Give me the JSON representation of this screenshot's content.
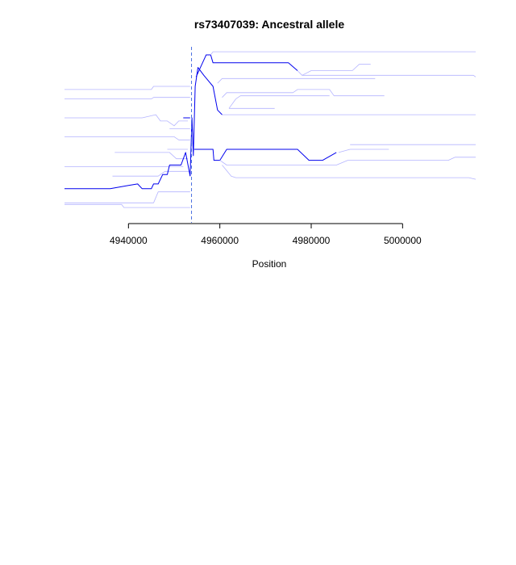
{
  "chart_data": {
    "type": "line",
    "title": "rs73407039: Ancestral allele",
    "xlabel": "Position",
    "ylabel": "",
    "xlim": [
      4926000,
      5016000
    ],
    "ylim": [
      0,
      1
    ],
    "x_ticks": [
      4940000,
      4960000,
      4980000,
      5000000
    ],
    "tick_labels": [
      "4940000",
      "4960000",
      "4980000",
      "5000000"
    ],
    "grid": false,
    "legend": "none",
    "marker_position": 4953800,
    "colors": {
      "strong": "#0000ee",
      "faint": "#b4b4ff",
      "marker": "#4a6fe0"
    },
    "series": [
      {
        "intensity": "faint",
        "points": [
          [
            4926000,
            0.78
          ],
          [
            4945000,
            0.78
          ],
          [
            4945500,
            0.8
          ],
          [
            4953500,
            0.8
          ]
        ]
      },
      {
        "intensity": "faint",
        "points": [
          [
            4926000,
            0.72
          ],
          [
            4945000,
            0.72
          ],
          [
            4945500,
            0.73
          ],
          [
            4953500,
            0.73
          ]
        ]
      },
      {
        "intensity": "faint",
        "points": [
          [
            4926000,
            0.6
          ],
          [
            4943000,
            0.6
          ],
          [
            4946000,
            0.62
          ],
          [
            4947000,
            0.58
          ],
          [
            4948500,
            0.58
          ],
          [
            4950000,
            0.55
          ],
          [
            4951000,
            0.58
          ],
          [
            4953000,
            0.58
          ]
        ]
      },
      {
        "intensity": "faint",
        "points": [
          [
            4949000,
            0.53
          ],
          [
            4953500,
            0.53
          ]
        ]
      },
      {
        "intensity": "faint",
        "points": [
          [
            4926000,
            0.48
          ],
          [
            4950000,
            0.48
          ],
          [
            4951000,
            0.46
          ],
          [
            4953500,
            0.46
          ]
        ]
      },
      {
        "intensity": "faint",
        "points": [
          [
            4948500,
            0.4
          ],
          [
            4953000,
            0.4
          ]
        ]
      },
      {
        "intensity": "faint",
        "points": [
          [
            4937000,
            0.38
          ],
          [
            4949000,
            0.38
          ],
          [
            4950500,
            0.34
          ],
          [
            4953000,
            0.34
          ]
        ]
      },
      {
        "intensity": "faint",
        "points": [
          [
            4926000,
            0.29
          ],
          [
            4952000,
            0.29
          ]
        ]
      },
      {
        "intensity": "faint",
        "points": [
          [
            4936500,
            0.23
          ],
          [
            4946500,
            0.23
          ],
          [
            4948000,
            0.26
          ],
          [
            4953500,
            0.26
          ]
        ]
      },
      {
        "intensity": "faint",
        "points": [
          [
            4926000,
            0.06
          ],
          [
            4945500,
            0.06
          ],
          [
            4946500,
            0.13
          ],
          [
            4953500,
            0.13
          ]
        ]
      },
      {
        "intensity": "faint",
        "points": [
          [
            4926000,
            0.05
          ],
          [
            4938500,
            0.05
          ],
          [
            4939000,
            0.03
          ],
          [
            4953500,
            0.03
          ]
        ]
      },
      {
        "intensity": "strong",
        "points": [
          [
            4926000,
            0.15
          ],
          [
            4936000,
            0.15
          ],
          [
            4940000,
            0.17
          ],
          [
            4942000,
            0.18
          ],
          [
            4943000,
            0.15
          ],
          [
            4945000,
            0.15
          ],
          [
            4945500,
            0.18
          ],
          [
            4946500,
            0.18
          ],
          [
            4947500,
            0.24
          ],
          [
            4948500,
            0.24
          ],
          [
            4949000,
            0.3
          ],
          [
            4951500,
            0.3
          ],
          [
            4952500,
            0.38
          ],
          [
            4953500,
            0.23
          ]
        ]
      },
      {
        "intensity": "strong",
        "points": [
          [
            4952000,
            0.6
          ],
          [
            4953500,
            0.6
          ]
        ]
      },
      {
        "intensity": "strong",
        "points": [
          [
            4953500,
            0.23
          ],
          [
            4953900,
            0.6
          ],
          [
            4954200,
            0.36
          ],
          [
            4954600,
            0.8
          ],
          [
            4955200,
            0.92
          ],
          [
            4956500,
            0.87
          ],
          [
            4958500,
            0.8
          ],
          [
            4959500,
            0.65
          ],
          [
            4960500,
            0.62
          ]
        ]
      },
      {
        "intensity": "strong",
        "points": [
          [
            4954400,
            0.4
          ],
          [
            4958500,
            0.4
          ],
          [
            4958700,
            0.33
          ],
          [
            4960000,
            0.33
          ],
          [
            4961500,
            0.4
          ],
          [
            4977000,
            0.4
          ],
          [
            4979500,
            0.33
          ],
          [
            4982500,
            0.33
          ],
          [
            4985500,
            0.38
          ]
        ]
      },
      {
        "intensity": "strong",
        "points": [
          [
            4954800,
            0.86
          ],
          [
            4957000,
            1.0
          ],
          [
            4958000,
            1.0
          ],
          [
            4958500,
            0.95
          ],
          [
            4975000,
            0.95
          ],
          [
            4977000,
            0.9
          ]
        ]
      },
      {
        "intensity": "faint",
        "points": [
          [
            4958000,
            1.0
          ],
          [
            4958500,
            1.02
          ],
          [
            5016000,
            1.02
          ]
        ]
      },
      {
        "intensity": "faint",
        "points": [
          [
            4977000,
            0.9
          ],
          [
            4978000,
            0.87
          ],
          [
            4980000,
            0.9
          ],
          [
            4989000,
            0.9
          ],
          [
            4990500,
            0.94
          ],
          [
            4993000,
            0.94
          ]
        ]
      },
      {
        "intensity": "faint",
        "points": [
          [
            4978000,
            0.87
          ],
          [
            5015500,
            0.87
          ],
          [
            5016000,
            0.86
          ]
        ]
      },
      {
        "intensity": "faint",
        "points": [
          [
            4959500,
            0.82
          ],
          [
            4960500,
            0.85
          ],
          [
            4994000,
            0.85
          ]
        ]
      },
      {
        "intensity": "faint",
        "points": [
          [
            4960500,
            0.73
          ],
          [
            4961500,
            0.76
          ],
          [
            4976000,
            0.76
          ],
          [
            4977000,
            0.78
          ],
          [
            4984000,
            0.78
          ],
          [
            4985000,
            0.74
          ],
          [
            4996000,
            0.74
          ]
        ]
      },
      {
        "intensity": "faint",
        "points": [
          [
            4963500,
            0.72
          ],
          [
            4964500,
            0.74
          ],
          [
            4984000,
            0.74
          ]
        ]
      },
      {
        "intensity": "faint",
        "points": [
          [
            4962000,
            0.66
          ],
          [
            4963500,
            0.72
          ]
        ]
      },
      {
        "intensity": "faint",
        "points": [
          [
            4962000,
            0.66
          ],
          [
            4972000,
            0.66
          ]
        ]
      },
      {
        "intensity": "faint",
        "points": [
          [
            4960500,
            0.62
          ],
          [
            5016000,
            0.62
          ]
        ]
      },
      {
        "intensity": "faint",
        "points": [
          [
            4986000,
            0.38
          ],
          [
            4988500,
            0.4
          ],
          [
            4997000,
            0.4
          ]
        ]
      },
      {
        "intensity": "faint",
        "points": [
          [
            4988500,
            0.43
          ],
          [
            5016000,
            0.43
          ]
        ]
      },
      {
        "intensity": "faint",
        "points": [
          [
            4960000,
            0.33
          ],
          [
            4961500,
            0.3
          ],
          [
            4985500,
            0.3
          ],
          [
            4988000,
            0.33
          ],
          [
            5010000,
            0.33
          ],
          [
            5011500,
            0.35
          ],
          [
            5016000,
            0.35
          ]
        ]
      },
      {
        "intensity": "faint",
        "points": [
          [
            4960500,
            0.3
          ],
          [
            4962500,
            0.23
          ],
          [
            4963500,
            0.22
          ],
          [
            5014500,
            0.22
          ],
          [
            5016000,
            0.21
          ]
        ]
      }
    ]
  }
}
